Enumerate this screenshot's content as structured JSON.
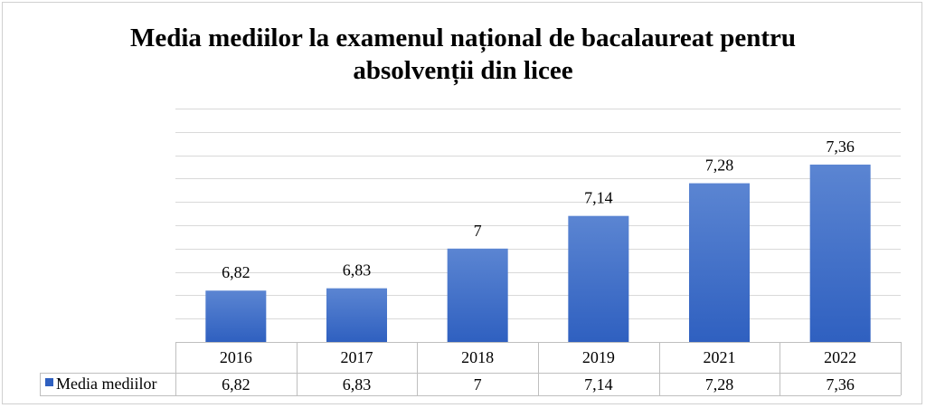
{
  "chart_data": {
    "type": "bar",
    "title": "Media mediilor la examenul național de bacalaureat pentru absolvenții din licee",
    "title_lines": [
      "Media mediilor la examenul național de bacalaureat pentru",
      "absolvenții din licee"
    ],
    "categories": [
      "2016",
      "2017",
      "2018",
      "2019",
      "2021",
      "2022"
    ],
    "series": [
      {
        "name": "Media mediilor",
        "values": [
          6.82,
          6.83,
          7,
          7.14,
          7.28,
          7.36
        ],
        "labels": [
          "6,82",
          "6,83",
          "7",
          "7,14",
          "7,28",
          "7,36"
        ]
      }
    ],
    "ylim": [
      6.6,
      7.6
    ],
    "grid": true,
    "legend": "data-table",
    "data_table": true,
    "colors": {
      "bar_top": "#5b85d2",
      "bar_bottom": "#2f60c0",
      "grid": "#d9d9d9",
      "table_border": "#bfbfbf"
    }
  }
}
